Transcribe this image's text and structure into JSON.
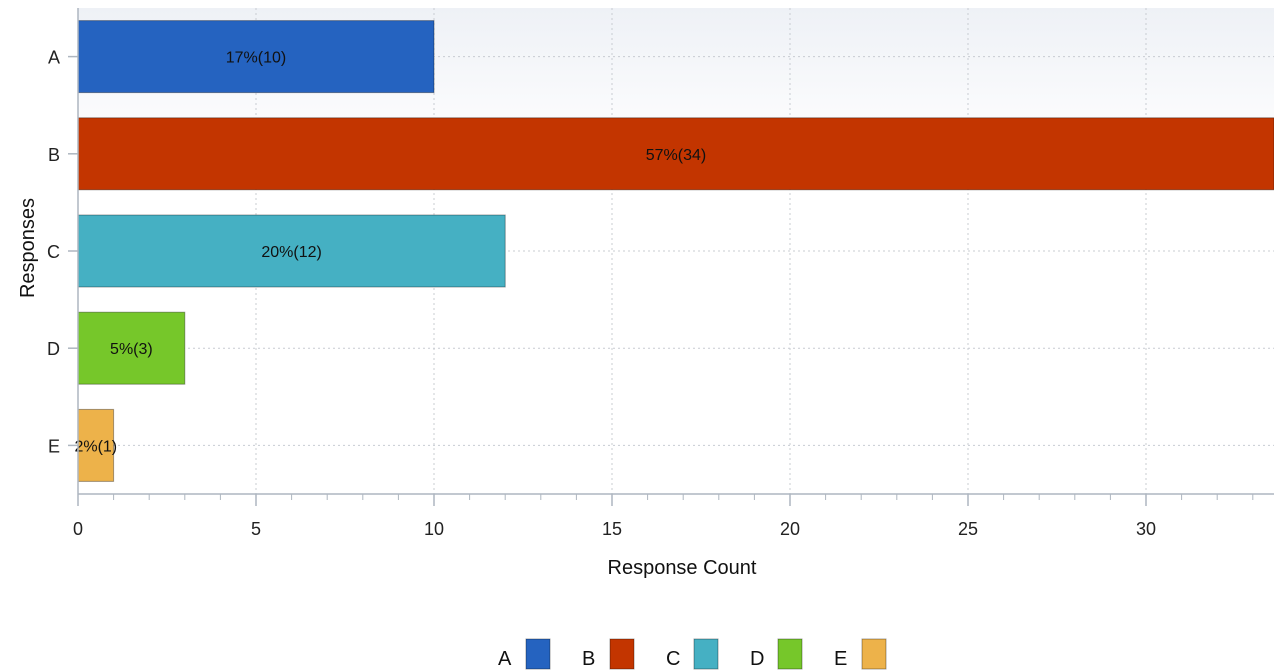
{
  "chart_data": {
    "type": "bar",
    "orientation": "horizontal",
    "categories": [
      "A",
      "B",
      "C",
      "D",
      "E"
    ],
    "values": [
      10,
      34,
      12,
      3,
      1
    ],
    "bar_labels": [
      "17%(10)",
      "57%(34)",
      "20%(12)",
      "5%(3)",
      "2%(1)"
    ],
    "colors": [
      "#2563c0",
      "#c33500",
      "#45b0c3",
      "#76c72a",
      "#edb24a"
    ],
    "xlabel": "Response Count",
    "ylabel": "Responses",
    "xticks": [
      0,
      5,
      10,
      15,
      20,
      25,
      30
    ],
    "xtick_labels": [
      "0",
      "5",
      "10",
      "15",
      "20",
      "25",
      "30"
    ],
    "xlim": [
      0,
      33.6
    ],
    "grid": true,
    "legend": {
      "placement": "bottom-center",
      "entries": [
        "A",
        "B",
        "C",
        "D",
        "E"
      ]
    }
  }
}
